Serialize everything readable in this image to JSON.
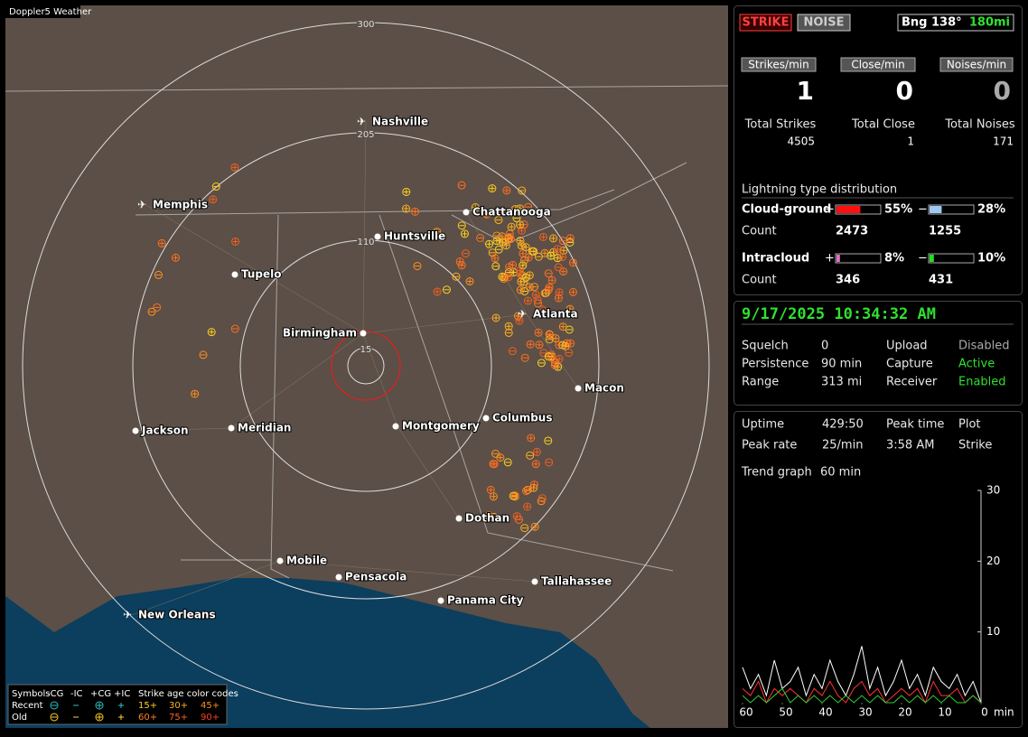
{
  "map": {
    "title": "Doppler5 Weather",
    "ring_labels": [
      "300",
      "205",
      "110",
      "15"
    ],
    "cities": [
      "Nashville",
      "Memphis",
      "Chattanooga",
      "Huntsville",
      "Tupelo",
      "Birmingham",
      "Atlanta",
      "Macon",
      "Columbus",
      "Montgomery",
      "Meridian",
      "Jackson",
      "Dothan",
      "Mobile",
      "Pensacola",
      "Tallahassee",
      "Panama City",
      "New Orleans"
    ],
    "legend": {
      "symbols": "Symbols",
      "types": [
        "-CG",
        "-IC",
        "+CG",
        "+IC"
      ],
      "age_title": "Strike age color codes",
      "rows": [
        "Recent",
        "Old"
      ],
      "ages": [
        [
          "15+",
          "30+",
          "45+"
        ],
        [
          "60+",
          "75+",
          "90+"
        ]
      ]
    }
  },
  "status": {
    "buttons": [
      "STRIKE",
      "NOISE"
    ],
    "bearing": "Bng 138°",
    "distance": "180mi",
    "rates": [
      {
        "label": "Strikes/min",
        "value": "1"
      },
      {
        "label": "Close/min",
        "value": "0"
      },
      {
        "label": "Noises/min",
        "value": "0"
      }
    ],
    "totals": [
      {
        "label": "Total Strikes",
        "value": "4505"
      },
      {
        "label": "Total Close",
        "value": "1"
      },
      {
        "label": "Total Noises",
        "value": "171"
      }
    ]
  },
  "distribution": {
    "title": "Lightning type distribution",
    "pos_sign": "+",
    "neg_sign": "−",
    "count_label": "Count",
    "rows": [
      {
        "type": "Cloud-ground",
        "pos": {
          "value": 55,
          "label": "55%"
        },
        "neg": {
          "value": 28,
          "label": "28%"
        },
        "pos_count": "2473",
        "neg_count": "1255"
      },
      {
        "type": "Intracloud",
        "pos": {
          "value": 8,
          "label": "8%"
        },
        "neg": {
          "value": 10,
          "label": "10%"
        },
        "pos_count": "346",
        "neg_count": "431"
      }
    ]
  },
  "settings": {
    "datetime": "9/17/2025 10:34:32 AM",
    "items": [
      {
        "label": "Squelch",
        "value": "0"
      },
      {
        "label": "Persistence",
        "value": "90 min"
      },
      {
        "label": "Range",
        "value": "313 mi"
      }
    ],
    "states": [
      {
        "label": "Upload",
        "value": "Disabled"
      },
      {
        "label": "Capture",
        "value": "Active"
      },
      {
        "label": "Receiver",
        "value": "Enabled"
      }
    ]
  },
  "trend": {
    "stats": [
      {
        "label": "Uptime",
        "value": "429:50"
      },
      {
        "label": "Peak rate",
        "value": "25/min"
      },
      {
        "label": "Peak time",
        "value": "3:58 AM"
      },
      {
        "label": "Plot",
        "value": "Strike"
      },
      {
        "label": "Trend graph",
        "value": "60 min"
      }
    ]
  },
  "chart_data": {
    "type": "line",
    "xlim": [
      60,
      0
    ],
    "xticks": [
      60,
      50,
      40,
      30,
      20,
      10,
      0
    ],
    "x_unit": "min",
    "ylim": [
      0,
      30
    ],
    "yticks": [
      10,
      20,
      30
    ],
    "x": [
      60,
      58,
      56,
      54,
      52,
      50,
      48,
      46,
      44,
      42,
      40,
      38,
      36,
      34,
      32,
      30,
      28,
      26,
      24,
      22,
      20,
      18,
      16,
      14,
      12,
      10,
      8,
      6,
      4,
      2,
      0
    ],
    "series": [
      {
        "color": "#ffffff",
        "values": [
          5,
          2,
          4,
          1,
          6,
          2,
          3,
          5,
          1,
          4,
          2,
          6,
          3,
          1,
          4,
          8,
          2,
          5,
          1,
          3,
          6,
          2,
          4,
          1,
          5,
          3,
          2,
          4,
          1,
          3,
          0
        ]
      },
      {
        "color": "#ff3030",
        "values": [
          2,
          1,
          3,
          0,
          2,
          1,
          2,
          1,
          0,
          2,
          1,
          3,
          1,
          0,
          2,
          3,
          1,
          2,
          0,
          1,
          2,
          1,
          2,
          0,
          3,
          1,
          1,
          2,
          0,
          1,
          0
        ]
      },
      {
        "color": "#30d030",
        "values": [
          1,
          0,
          1,
          0,
          1,
          2,
          0,
          1,
          0,
          1,
          0,
          1,
          0,
          1,
          0,
          1,
          0,
          1,
          0,
          0,
          1,
          0,
          1,
          0,
          1,
          0,
          1,
          0,
          0,
          1,
          0
        ]
      }
    ]
  }
}
